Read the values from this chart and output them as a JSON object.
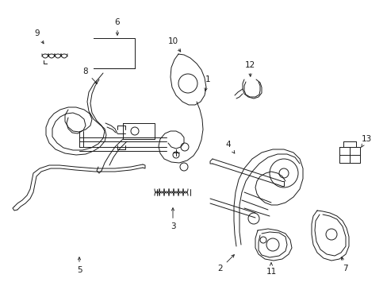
{
  "background_color": "#ffffff",
  "line_color": "#1a1a1a",
  "figsize": [
    4.89,
    3.6
  ],
  "dpi": 100,
  "label_fontsize": 7.5,
  "lw": 0.7
}
